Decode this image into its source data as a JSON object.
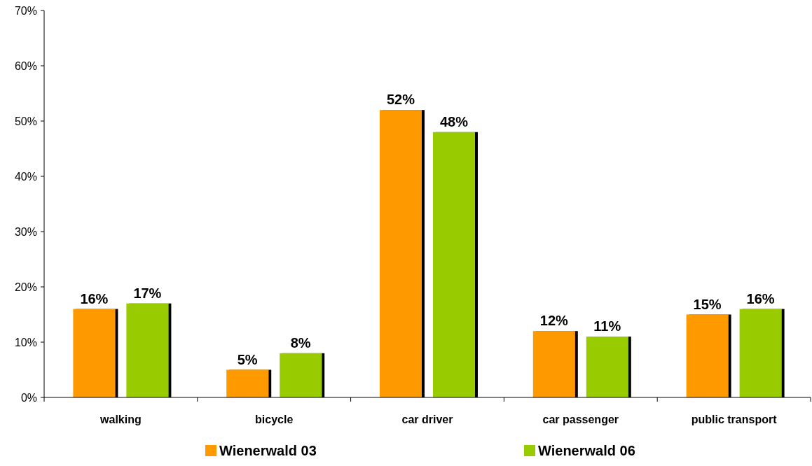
{
  "chart_data": {
    "type": "bar",
    "categories": [
      "walking",
      "bicycle",
      "car driver",
      "car passenger",
      "public transport"
    ],
    "series": [
      {
        "name": "Wienerwald 03",
        "color": "#ff9900",
        "values": [
          16,
          5,
          52,
          12,
          15
        ],
        "value_labels": [
          "16%",
          "5%",
          "52%",
          "12%",
          "15%"
        ]
      },
      {
        "name": "Wienerwald 06",
        "color": "#99cc00",
        "values": [
          17,
          8,
          48,
          11,
          16
        ],
        "value_labels": [
          "17%",
          "8%",
          "48%",
          "11%",
          "16%"
        ]
      }
    ],
    "ylim": [
      0,
      70
    ],
    "yticks": [
      {
        "value": 0,
        "label": "0%"
      },
      {
        "value": 10,
        "label": "10%"
      },
      {
        "value": 20,
        "label": "20%"
      },
      {
        "value": 30,
        "label": "30%"
      },
      {
        "value": 40,
        "label": "40%"
      },
      {
        "value": 50,
        "label": "50%"
      },
      {
        "value": 60,
        "label": "60%"
      },
      {
        "value": 70,
        "label": "70%"
      }
    ],
    "legend": "bottom",
    "grid": false
  }
}
